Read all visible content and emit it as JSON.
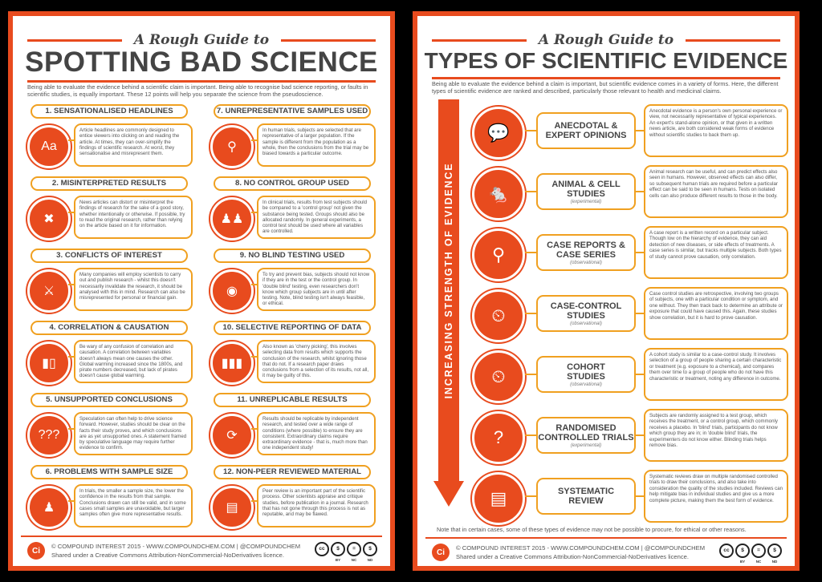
{
  "left": {
    "subtitle": "A Rough Guide to",
    "title": "SPOTTING BAD SCIENCE",
    "intro": "Being able to evaluate the evidence behind a scientific claim is important. Being able to recognise bad science reporting, or faults in scientific studies, is equally important. These 12 points will help you separate the science from the pseudoscience.",
    "items": [
      {
        "title": "1. SENSATIONALISED HEADLINES",
        "icon": "Aa",
        "icon_name": "text-icon",
        "body": "Article headlines are commonly designed to entice viewers into clicking on and reading the article. At times, they can over-simplify the findings of scientific research. At worst, they sensationalise and misrepresent them."
      },
      {
        "title": "2. MISINTERPRETED RESULTS",
        "icon": "✖",
        "icon_name": "cross-icon",
        "body": "News articles can distort or misinterpret the findings of research for the sake of a good story, whether intentionally or otherwise. If possible, try to read the original research, rather than relying on the article based on it for information."
      },
      {
        "title": "3. CONFLICTS OF INTEREST",
        "icon": "⚔",
        "icon_name": "crossed-swords-icon",
        "body": "Many companies will employ scientists to carry out and publish research - whilst this doesn't necessarily invalidate the research, it should be analysed with this in mind. Research can also be misrepresented for personal or financial gain."
      },
      {
        "title": "4. CORRELATION & CAUSATION",
        "icon": "▮▯",
        "icon_name": "chart-icon",
        "body": "Be wary of any confusion of correlation and causation. A correlation between variables doesn't always mean one causes the other. Global warming increased since the 1800s, and pirate numbers decreased, but lack of pirates doesn't cause global warming."
      },
      {
        "title": "5. UNSUPPORTED CONCLUSIONS",
        "icon": "???",
        "icon_name": "speech-question-icon",
        "body": "Speculation can often help to drive science forward. However, studies should be clear on the facts their study proves, and which conclusions are as yet unsupported ones. A statement framed by speculative language may require further evidence to confirm."
      },
      {
        "title": "6. PROBLEMS WITH SAMPLE SIZE",
        "icon": "♟",
        "icon_name": "person-icon",
        "body": "In trials, the smaller a sample size, the lower the confidence in the results from that sample. Conclusions drawn can still be valid, and in some cases small samples are unavoidable, but larger samples often give more representative results."
      },
      {
        "title": "7. UNREPRESENTATIVE SAMPLES USED",
        "icon": "⚲",
        "icon_name": "magnifier-icon",
        "body": "In human trials, subjects are selected that are representative of a larger population. If the sample is different from the population as a whole, then the conclusions from the trial may be biased towards a particular outcome."
      },
      {
        "title": "8. NO CONTROL GROUP USED",
        "icon": "♟♟",
        "icon_name": "people-icon",
        "body": "In clinical trials, results from test subjects should be compared to a 'control group' not given the substance being tested. Groups should also be allocated randomly. In general experiments, a control test should be used where all variables are controlled."
      },
      {
        "title": "9. NO BLIND TESTING USED",
        "icon": "◉",
        "icon_name": "eye-icon",
        "body": "To try and prevent bias, subjects should not know if they are in the test or the control group. In 'double blind' testing, even researchers don't know which group subjects are in until after testing. Note, blind testing isn't always feasible, or ethical."
      },
      {
        "title": "10. SELECTIVE REPORTING OF DATA",
        "icon": "▮▮▮",
        "icon_name": "bar-chart-icon",
        "body": "Also known as 'cherry picking', this involves selecting data from results which supports the conclusion of the research, whilst ignoring those that do not. If a research paper draws conclusions from a selection of its results, not all, it may be guilty of this."
      },
      {
        "title": "11. UNREPLICABLE RESULTS",
        "icon": "⟳",
        "icon_name": "repeat-icon",
        "body": "Results should be replicable by independent research, and tested over a wide range of conditions (where possible) to ensure they are consistent. Extraordinary claims require extraordinary evidence - that is, much more than one independent study!"
      },
      {
        "title": "12. NON-PEER REVIEWED MATERIAL",
        "icon": "▤",
        "icon_name": "book-icon",
        "body": "Peer review is an important part of the scientific process. Other scientists appraise and critique studies, before publication in a journal. Research that has not gone through this process is not as reputable, and may be flawed."
      }
    ],
    "footer1": "© COMPOUND INTEREST 2015 - WWW.COMPOUNDCHEM.COM | @COMPOUNDCHEM",
    "footer2": "Shared under a Creative Commons Attribution-NonCommercial-NoDerivatives licence."
  },
  "right": {
    "subtitle": "A Rough Guide to",
    "title": "TYPES OF SCIENTIFIC EVIDENCE",
    "intro": "Being able to evaluate the evidence behind a claim is important, but scientific evidence comes in a variety of forms. Here, the different types of scientific evidence are ranked and described, particularly those relevant to health and medicinal claims.",
    "arrow_label": "INCREASING STRENGTH OF EVIDENCE",
    "items": [
      {
        "name1": "ANECDOTAL &",
        "name2": "EXPERT OPINIONS",
        "sub": "",
        "icon": "💬",
        "icon_name": "speech-bubble-icon",
        "body": "Anecdotal evidence is a person's own personal experience or view, not necessarily representative of typical experiences. An expert's stand-alone opinion, or that given in a written news article, are both considered weak forms of evidence without scientific studies to back them up."
      },
      {
        "name1": "ANIMAL & CELL",
        "name2": "STUDIES",
        "sub": "(experimental)",
        "icon": "🐁",
        "icon_name": "mouse-icon",
        "body": "Animal research can be useful, and can predict effects also seen in humans. However, observed effects can also differ, so subsequent human trials are required before a particular effect can be said to be seen in humans. Tests on isolated cells can also produce different results to those in the body."
      },
      {
        "name1": "CASE REPORTS &",
        "name2": "CASE SERIES",
        "sub": "(observational)",
        "icon": "⚲",
        "icon_name": "magnifier-icon",
        "body": "A case report is a written record on a particular subject. Though low on the hierarchy of evidence, they can aid detection of new diseases, or side effects of treatments. A case series is similar, but tracks multiple subjects. Both types of study cannot prove causation, only correlation."
      },
      {
        "name1": "CASE-CONTROL",
        "name2": "STUDIES",
        "sub": "(observational)",
        "icon": "⏲",
        "icon_name": "people-clock-icon",
        "body": "Case control studies are retrospective, involving two groups of subjects, one with a particular condition or symptom, and one without. They then track back to determine an attribute or exposure that could have caused this. Again, these studies show correlation, but it is hard to prove causation."
      },
      {
        "name1": "COHORT",
        "name2": "STUDIES",
        "sub": "(observational)",
        "icon": "⏲",
        "icon_name": "people-clock-icon",
        "body": "A cohort study is similar to a case-control study. It involves selection of a group of people sharing a certain characteristic or treatment (e.g. exposure to a chemical), and compares them over time to a group of people who do not have this characteristic or treatment, noting any difference in outcome."
      },
      {
        "name1": "RANDOMISED",
        "name2": "CONTROLLED TRIALS",
        "sub": "(experimental)",
        "icon": "?",
        "icon_name": "people-question-icon",
        "body": "Subjects are randomly assigned to a test group, which receives the treatment, or a control group, which commonly receives a placebo. In 'blind' trials, participants do not know which group they are in; in 'double blind' trials, the experimenters do not know either. Blinding trials helps remove bias."
      },
      {
        "name1": "SYSTEMATIC",
        "name2": "REVIEW",
        "sub": "",
        "icon": "▤",
        "icon_name": "books-icon",
        "body": "Systematic reviews draw on multiple randomised controlled trials to draw their conclusions, and also take into consideration the quality of the studies included. Reviews can help mitigate bias in individual studies and give us a more complete picture, making them the best form of evidence."
      }
    ],
    "note": "Note that in certain cases, some of these types of evidence may not be possible to procure, for ethical or other reasons.",
    "footer1": "© COMPOUND INTEREST 2015 - WWW.COMPOUNDCHEM.COM | @COMPOUNDCHEM",
    "footer2": "Shared under a Creative Commons Attribution-NonCommercial-NoDerivatives licence."
  },
  "logo_text": "Ci",
  "cc_icons": [
    "cc",
    "$",
    "=",
    "$"
  ],
  "cc_labels": [
    "",
    "BY",
    "NC",
    "ND"
  ],
  "colors": {
    "accent": "#e84b1e",
    "outline": "#f0a020"
  }
}
